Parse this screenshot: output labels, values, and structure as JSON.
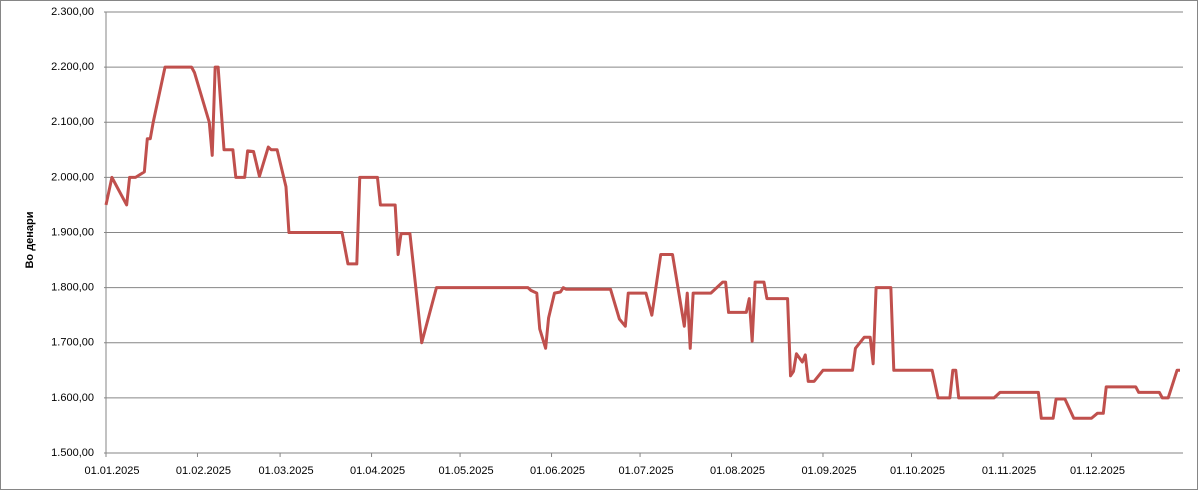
{
  "chart_data": {
    "type": "line",
    "y_label": "Во денари",
    "color": "#c0504d",
    "grid": true,
    "xlim": [
      "2025-01-01",
      "2025-12-31"
    ],
    "ylim": [
      1500,
      2300
    ],
    "yticks": [
      {
        "value": 1500,
        "label": "1.500,00"
      },
      {
        "value": 1600,
        "label": "1.600,00"
      },
      {
        "value": 1700,
        "label": "1.700,00"
      },
      {
        "value": 1800,
        "label": "1.800,00"
      },
      {
        "value": 1900,
        "label": "1.900,00"
      },
      {
        "value": 2000,
        "label": "2.000,00"
      },
      {
        "value": 2100,
        "label": "2.100,00"
      },
      {
        "value": 2200,
        "label": "2.200,00"
      },
      {
        "value": 2300,
        "label": "2.300,00"
      }
    ],
    "xticks": [
      {
        "value": "2025-01-01",
        "label": "01.01.2025"
      },
      {
        "value": "2025-02-01",
        "label": "01.02.2025"
      },
      {
        "value": "2025-03-01",
        "label": "01.03.2025"
      },
      {
        "value": "2025-04-01",
        "label": "01.04.2025"
      },
      {
        "value": "2025-05-01",
        "label": "01.05.2025"
      },
      {
        "value": "2025-06-01",
        "label": "01.06.2025"
      },
      {
        "value": "2025-07-01",
        "label": "01.07.2025"
      },
      {
        "value": "2025-08-01",
        "label": "01.08.2025"
      },
      {
        "value": "2025-09-01",
        "label": "01.09.2025"
      },
      {
        "value": "2025-10-01",
        "label": "01.10.2025"
      },
      {
        "value": "2025-11-01",
        "label": "01.11.2025"
      },
      {
        "value": "2025-12-01",
        "label": "01.12.2025"
      }
    ],
    "x": [
      "2025-01-01",
      "2025-01-03",
      "2025-01-08",
      "2025-01-09",
      "2025-01-11",
      "2025-01-14",
      "2025-01-15",
      "2025-01-16",
      "2025-01-17",
      "2025-01-21",
      "2025-01-27",
      "2025-01-28",
      "2025-01-30",
      "2025-01-31",
      "2025-02-05",
      "2025-02-06",
      "2025-02-07",
      "2025-02-08",
      "2025-02-10",
      "2025-02-13",
      "2025-02-14",
      "2025-02-17",
      "2025-02-18",
      "2025-02-20",
      "2025-02-22",
      "2025-02-25",
      "2025-02-26",
      "2025-02-28",
      "2025-03-03",
      "2025-03-04",
      "2025-03-22",
      "2025-03-24",
      "2025-03-27",
      "2025-03-28",
      "2025-04-03",
      "2025-04-04",
      "2025-04-09",
      "2025-04-10",
      "2025-04-11",
      "2025-04-14",
      "2025-04-16",
      "2025-04-18",
      "2025-04-23",
      "2025-05-24",
      "2025-05-25",
      "2025-05-27",
      "2025-05-28",
      "2025-05-30",
      "2025-05-31",
      "2025-06-02",
      "2025-06-04",
      "2025-06-05",
      "2025-06-06",
      "2025-06-21",
      "2025-06-24",
      "2025-06-26",
      "2025-06-27",
      "2025-07-03",
      "2025-07-05",
      "2025-07-08",
      "2025-07-12",
      "2025-07-16",
      "2025-07-17",
      "2025-07-18",
      "2025-07-19",
      "2025-07-25",
      "2025-07-29",
      "2025-07-30",
      "2025-07-31",
      "2025-08-06",
      "2025-08-07",
      "2025-08-08",
      "2025-08-09",
      "2025-08-12",
      "2025-08-13",
      "2025-08-20",
      "2025-08-21",
      "2025-08-22",
      "2025-08-23",
      "2025-08-25",
      "2025-08-26",
      "2025-08-27",
      "2025-08-29",
      "2025-09-01",
      "2025-09-11",
      "2025-09-12",
      "2025-09-15",
      "2025-09-17",
      "2025-09-18",
      "2025-09-19",
      "2025-09-24",
      "2025-09-25",
      "2025-10-08",
      "2025-10-10",
      "2025-10-14",
      "2025-10-15",
      "2025-10-16",
      "2025-10-17",
      "2025-10-29",
      "2025-10-31",
      "2025-11-13",
      "2025-11-14",
      "2025-11-18",
      "2025-11-19",
      "2025-11-22",
      "2025-11-25",
      "2025-12-01",
      "2025-12-03",
      "2025-12-05",
      "2025-12-06",
      "2025-12-16",
      "2025-12-17",
      "2025-12-24",
      "2025-12-25",
      "2025-12-27",
      "2025-12-30",
      "2025-12-31"
    ],
    "values": [
      1950,
      2000,
      1950,
      2000,
      2000,
      2010,
      2070,
      2070,
      2100,
      2200,
      2200,
      2200,
      2200,
      2190,
      2100,
      2040,
      2200,
      2200,
      2050,
      2050,
      2000,
      2000,
      2048,
      2047,
      2002,
      2055,
      2050,
      2050,
      1983,
      1900,
      1900,
      1843,
      1843,
      2000,
      2000,
      1950,
      1950,
      1860,
      1898,
      1898,
      1800,
      1700,
      1800,
      1800,
      1795,
      1790,
      1725,
      1690,
      1745,
      1790,
      1792,
      1800,
      1797,
      1797,
      1743,
      1730,
      1790,
      1790,
      1750,
      1860,
      1860,
      1730,
      1790,
      1690,
      1790,
      1790,
      1810,
      1810,
      1755,
      1755,
      1780,
      1703,
      1810,
      1810,
      1780,
      1780,
      1640,
      1648,
      1680,
      1665,
      1678,
      1630,
      1630,
      1650,
      1650,
      1690,
      1710,
      1710,
      1662,
      1800,
      1800,
      1650,
      1650,
      1600,
      1600,
      1650,
      1650,
      1600,
      1600,
      1610,
      1610,
      1563,
      1563,
      1598,
      1598,
      1563,
      1563,
      1572,
      1572,
      1620,
      1620,
      1610,
      1610,
      1600,
      1600,
      1650,
      1650
    ]
  }
}
